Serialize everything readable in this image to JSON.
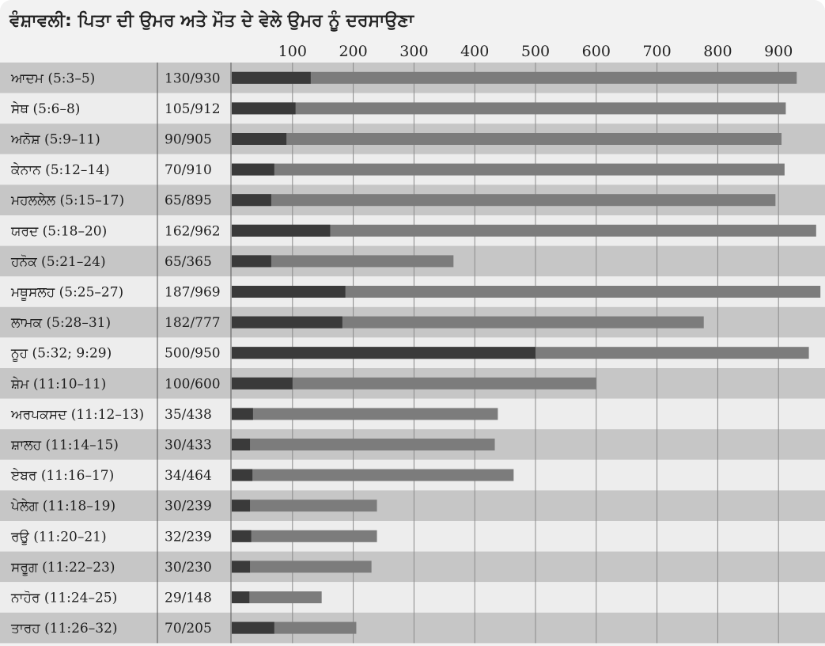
{
  "title": "ਵੰਸ਼ਾਵਲੀ: ਪਿਤਾ ਦੀ ਉਮਰ ਅਤੇ ਮੌਤ ਦੇ ਵੇਲੇ ਉਮਰ ਨੂੰ ਦਰਸਾਉਣਾ",
  "colors": {
    "father_age_bar": "#3a3a3a",
    "lifespan_bar": "#7c7c7c",
    "row_dark": "#c6c6c6",
    "row_light": "#ededed",
    "gridline": "#8a8a8a"
  },
  "chart_data": {
    "type": "bar",
    "orientation": "horizontal",
    "xlim": [
      0,
      990
    ],
    "x_ticks": [
      100,
      200,
      300,
      400,
      500,
      600,
      700,
      800,
      900
    ],
    "grid": true,
    "rows": [
      {
        "name": "ਆਦਮ (5:3–5)",
        "label": "130/930",
        "father_age": 130,
        "age_at_death": 930
      },
      {
        "name": "ਸੇਥ (5:6–8)",
        "label": "105/912",
        "father_age": 105,
        "age_at_death": 912
      },
      {
        "name": "ਅਨੋਸ਼ (5:9–11)",
        "label": "90/905",
        "father_age": 90,
        "age_at_death": 905
      },
      {
        "name": "ਕੇਨਾਨ (5:12–14)",
        "label": "70/910",
        "father_age": 70,
        "age_at_death": 910
      },
      {
        "name": "ਮਹਲਲੇਲ (5:15–17)",
        "label": "65/895",
        "father_age": 65,
        "age_at_death": 895
      },
      {
        "name": "ਯਰਦ (5:18–20)",
        "label": "162/962",
        "father_age": 162,
        "age_at_death": 962
      },
      {
        "name": "ਹਨੋਕ (5:21–24)",
        "label": "65/365",
        "father_age": 65,
        "age_at_death": 365
      },
      {
        "name": "ਮਥੂਸਲਹ (5:25–27)",
        "label": "187/969",
        "father_age": 187,
        "age_at_death": 969
      },
      {
        "name": "ਲਾਮਕ (5:28–31)",
        "label": "182/777",
        "father_age": 182,
        "age_at_death": 777
      },
      {
        "name": "ਨੂਹ (5:32; 9:29)",
        "label": "500/950",
        "father_age": 500,
        "age_at_death": 950
      },
      {
        "name": "ਸ਼ੇਮ (11:10–11)",
        "label": "100/600",
        "father_age": 100,
        "age_at_death": 600
      },
      {
        "name": "ਅਰਪਕਸਦ (11:12–13)",
        "label": "35/438",
        "father_age": 35,
        "age_at_death": 438
      },
      {
        "name": "ਸ਼ਾਲਹ (11:14–15)",
        "label": "30/433",
        "father_age": 30,
        "age_at_death": 433
      },
      {
        "name": "ਏਬਰ (11:16–17)",
        "label": "34/464",
        "father_age": 34,
        "age_at_death": 464
      },
      {
        "name": "ਪੇਲੇਗ (11:18–19)",
        "label": "30/239",
        "father_age": 30,
        "age_at_death": 239
      },
      {
        "name": "ਰਊ (11:20–21)",
        "label": "32/239",
        "father_age": 32,
        "age_at_death": 239
      },
      {
        "name": "ਸਰੂਗ (11:22–23)",
        "label": "30/230",
        "father_age": 30,
        "age_at_death": 230
      },
      {
        "name": "ਨਾਹੋਰ (11:24–25)",
        "label": "29/148",
        "father_age": 29,
        "age_at_death": 148
      },
      {
        "name": "ਤਾਰਹ (11:26–32)",
        "label": "70/205",
        "father_age": 70,
        "age_at_death": 205
      }
    ]
  }
}
